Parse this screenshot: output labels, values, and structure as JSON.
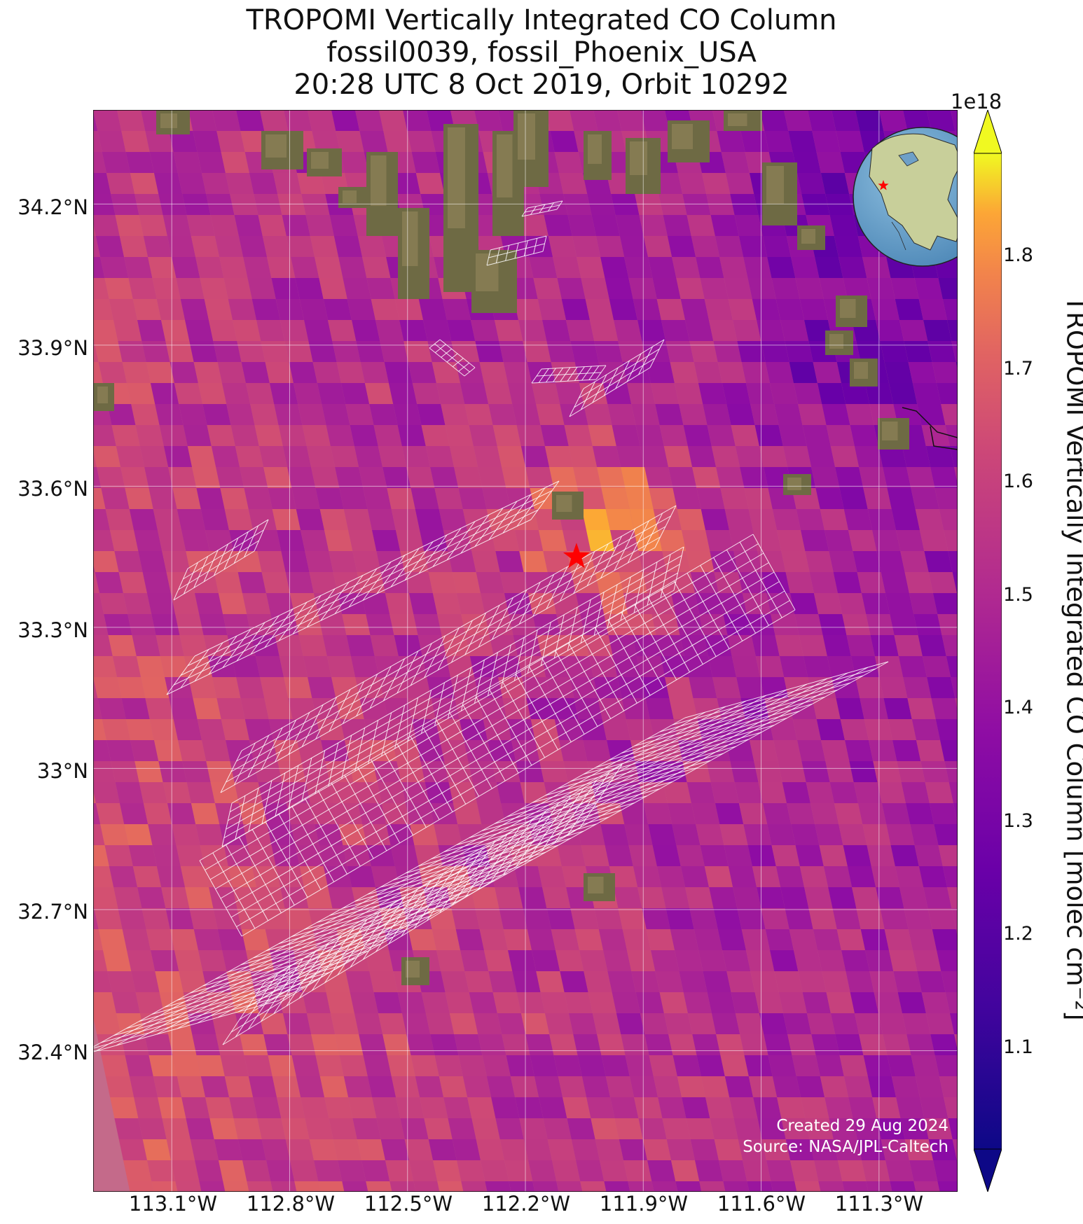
{
  "title": {
    "line1": "TROPOMI Vertically Integrated CO Column",
    "line2": "fossil0039, fossil_Phoenix_USA",
    "line3": "20:28 UTC 8 Oct 2019, Orbit 10292"
  },
  "colorbar": {
    "label": "TROPOMI Vertically Integrated CO Column [molec cm⁻²]",
    "exponent": "1e18",
    "colormap": "plasma",
    "range": [
      1.0,
      1.88
    ],
    "ticks": [
      "1.1",
      "1.2",
      "1.3",
      "1.4",
      "1.5",
      "1.6",
      "1.7",
      "1.8"
    ],
    "extend": "both"
  },
  "axes": {
    "lat_ticks": [
      "34.2°N",
      "33.9°N",
      "33.6°N",
      "33.3°N",
      "33°N",
      "32.7°N",
      "32.4°N"
    ],
    "lon_ticks": [
      "113.1°W",
      "112.8°W",
      "112.5°W",
      "112.2°W",
      "111.9°W",
      "111.6°W",
      "111.3°W"
    ],
    "lat_range": [
      32.1,
      34.4
    ],
    "lon_range": [
      -113.3,
      -111.1
    ],
    "grid": true
  },
  "marker": {
    "name": "Phoenix target",
    "lat": 33.45,
    "lon": -112.07,
    "color": "#ff0000"
  },
  "inset": {
    "type": "orthographic globe",
    "center": "North America",
    "marker_color": "#ff0000"
  },
  "credits": {
    "line1": "Created 29 Aug 2024",
    "line2": "Source: NASA/JPL-Caltech"
  }
}
